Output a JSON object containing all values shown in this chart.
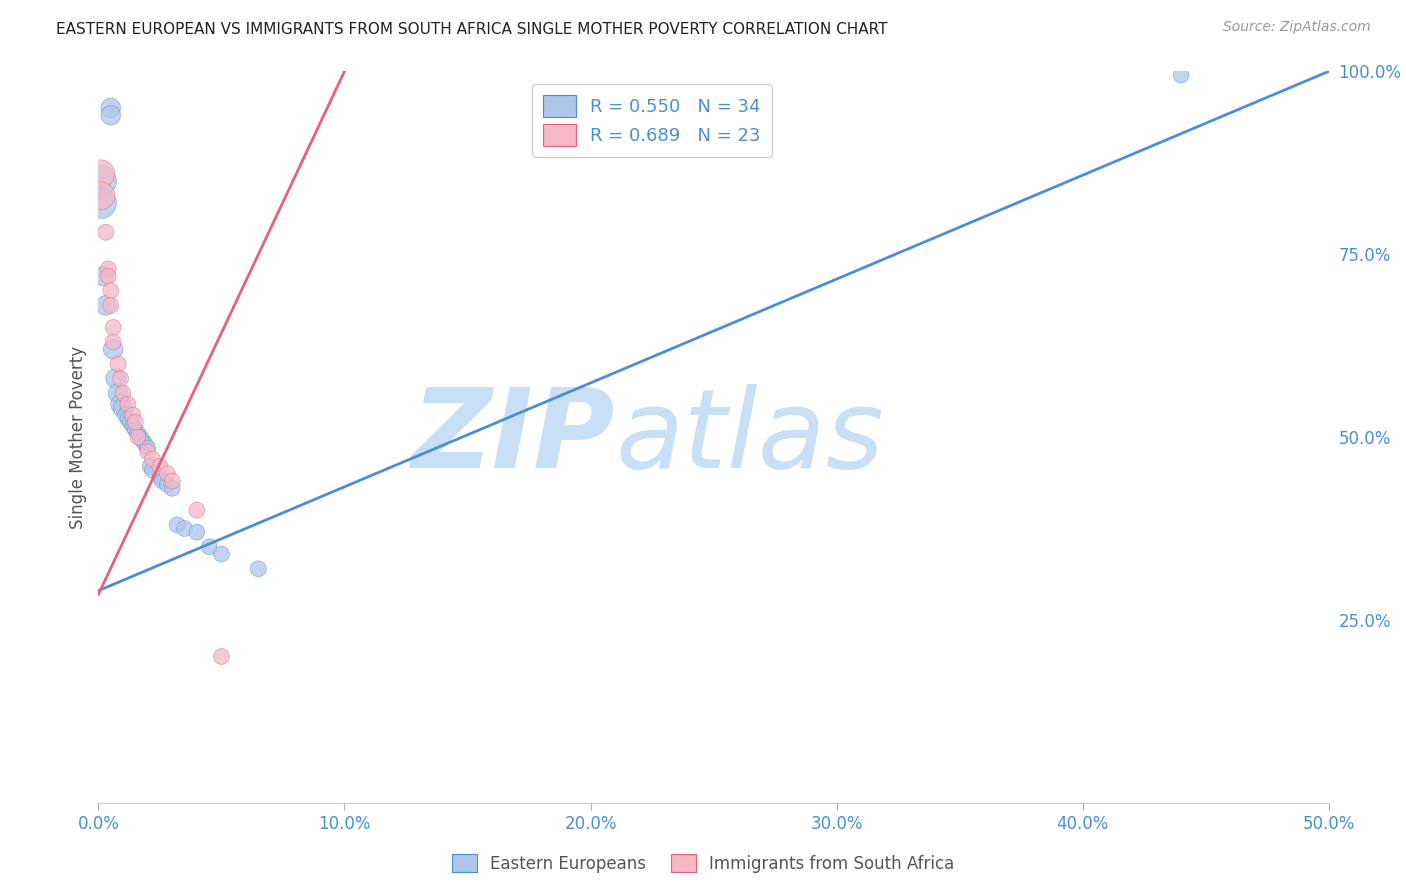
{
  "title": "EASTERN EUROPEAN VS IMMIGRANTS FROM SOUTH AFRICA SINGLE MOTHER POVERTY CORRELATION CHART",
  "source": "Source: ZipAtlas.com",
  "ylabel": "Single Mother Poverty",
  "blue_R": "R = 0.550",
  "blue_N": "N = 34",
  "pink_R": "R = 0.689",
  "pink_N": "N = 23",
  "legend_label_blue": "Eastern Europeans",
  "legend_label_pink": "Immigrants from South Africa",
  "blue_color": "#aec6e8",
  "pink_color": "#f4b8c8",
  "blue_line_color": "#4a8fd4",
  "pink_line_color": "#e8607a",
  "blue_scatter": [
    [
      0.001,
      0.85
    ],
    [
      0.001,
      0.82
    ],
    [
      0.002,
      0.72
    ],
    [
      0.003,
      0.68
    ],
    [
      0.005,
      0.95
    ],
    [
      0.005,
      0.94
    ],
    [
      0.006,
      0.62
    ],
    [
      0.007,
      0.58
    ],
    [
      0.008,
      0.56
    ],
    [
      0.009,
      0.545
    ],
    [
      0.01,
      0.54
    ],
    [
      0.011,
      0.53
    ],
    [
      0.012,
      0.525
    ],
    [
      0.013,
      0.52
    ],
    [
      0.014,
      0.515
    ],
    [
      0.015,
      0.51
    ],
    [
      0.016,
      0.505
    ],
    [
      0.017,
      0.5
    ],
    [
      0.018,
      0.495
    ],
    [
      0.019,
      0.49
    ],
    [
      0.02,
      0.485
    ],
    [
      0.021,
      0.46
    ],
    [
      0.022,
      0.455
    ],
    [
      0.025,
      0.445
    ],
    [
      0.026,
      0.44
    ],
    [
      0.028,
      0.435
    ],
    [
      0.03,
      0.43
    ],
    [
      0.032,
      0.38
    ],
    [
      0.035,
      0.375
    ],
    [
      0.04,
      0.37
    ],
    [
      0.045,
      0.35
    ],
    [
      0.05,
      0.34
    ],
    [
      0.065,
      0.32
    ],
    [
      0.44,
      0.995
    ]
  ],
  "pink_scatter": [
    [
      0.001,
      0.86
    ],
    [
      0.001,
      0.83
    ],
    [
      0.003,
      0.78
    ],
    [
      0.004,
      0.73
    ],
    [
      0.004,
      0.72
    ],
    [
      0.005,
      0.7
    ],
    [
      0.005,
      0.68
    ],
    [
      0.006,
      0.65
    ],
    [
      0.006,
      0.63
    ],
    [
      0.008,
      0.6
    ],
    [
      0.009,
      0.58
    ],
    [
      0.01,
      0.56
    ],
    [
      0.012,
      0.545
    ],
    [
      0.014,
      0.53
    ],
    [
      0.015,
      0.52
    ],
    [
      0.016,
      0.5
    ],
    [
      0.02,
      0.48
    ],
    [
      0.022,
      0.47
    ],
    [
      0.025,
      0.46
    ],
    [
      0.028,
      0.45
    ],
    [
      0.03,
      0.44
    ],
    [
      0.04,
      0.4
    ],
    [
      0.05,
      0.2
    ]
  ],
  "blue_line_pts": [
    [
      0.0,
      0.29
    ],
    [
      0.5,
      1.0
    ]
  ],
  "pink_line_pts": [
    [
      0.0,
      0.285
    ],
    [
      0.1,
      1.0
    ]
  ],
  "xlim": [
    0,
    0.5
  ],
  "ylim": [
    0,
    1.0
  ],
  "xtick_vals": [
    0.0,
    0.1,
    0.2,
    0.3,
    0.4,
    0.5
  ],
  "xtick_labels": [
    "0.0%",
    "10.0%",
    "20.0%",
    "30.0%",
    "40.0%",
    "50.0%"
  ],
  "ytick_vals": [
    0.25,
    0.5,
    0.75,
    1.0
  ],
  "ytick_labels": [
    "25.0%",
    "50.0%",
    "75.0%",
    "100.0%"
  ],
  "watermark_zip": "ZIP",
  "watermark_atlas": "atlas",
  "watermark_color": "#c8dff5",
  "bg_color": "#ffffff",
  "grid_color": "#dddddd",
  "title_color": "#222222",
  "axis_color": "#4a8fd4",
  "figsize": [
    14.06,
    8.92
  ],
  "dpi": 100
}
